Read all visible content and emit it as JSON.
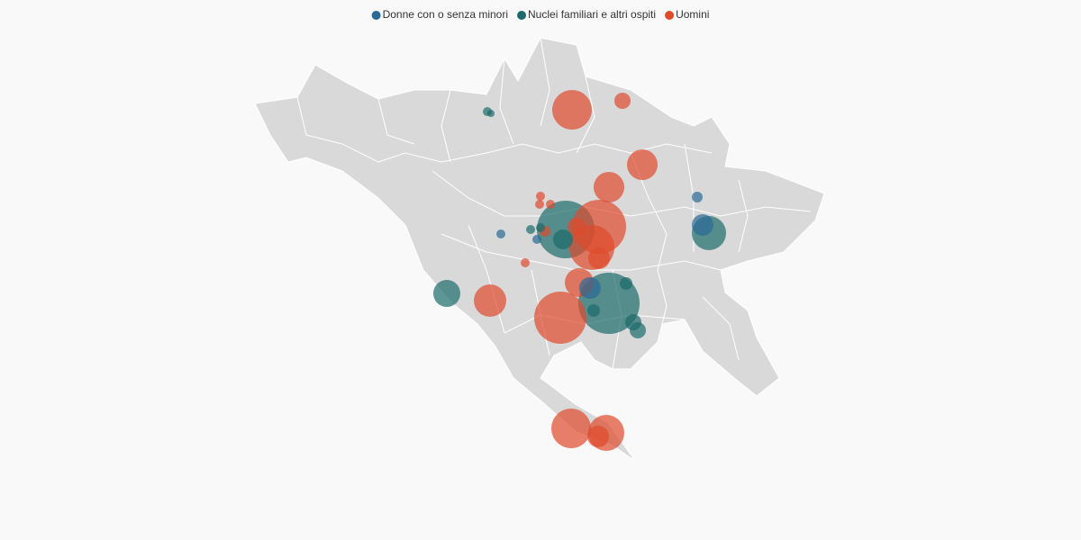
{
  "legend": {
    "items": [
      {
        "name": "Donne con o senza minori",
        "color": "#2b6a97"
      },
      {
        "name": "Nuclei familiari e altri ospiti",
        "color": "#1c6b6b"
      },
      {
        "name": "Uomini",
        "color": "#de4a2c"
      }
    ]
  }
}
